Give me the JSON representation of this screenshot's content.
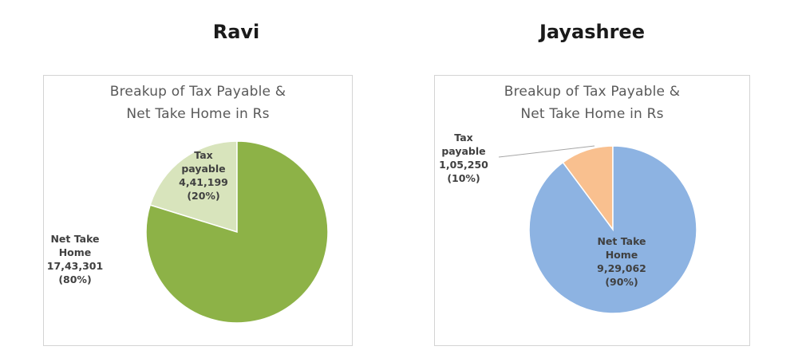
{
  "chart_data": [
    {
      "type": "pie",
      "heading": "Ravi",
      "title_lines": [
        "Breakup of Tax Payable &",
        "Net Take Home  in Rs"
      ],
      "slices": [
        {
          "name_lines": [
            "Tax",
            "payable"
          ],
          "value": 441199,
          "value_label": "4,41,199",
          "percent_label": "(20%)",
          "color": "#d8e4bc"
        },
        {
          "name_lines": [
            "Net Take",
            "Home"
          ],
          "value": 1743301,
          "value_label": "17,43,301",
          "percent_label": "(80%)",
          "color": "#8db247"
        }
      ]
    },
    {
      "type": "pie",
      "heading": "Jayashree",
      "title_lines": [
        "Breakup of Tax Payable &",
        "Net Take Home  in Rs"
      ],
      "slices": [
        {
          "name_lines": [
            "Tax",
            "payable"
          ],
          "value": 105250,
          "value_label": "1,05,250",
          "percent_label": "(10%)",
          "color": "#f9c08f"
        },
        {
          "name_lines": [
            "Net Take",
            "Home"
          ],
          "value": 929062,
          "value_label": "9,29,062",
          "percent_label": "(90%)",
          "color": "#8db3e2"
        }
      ]
    }
  ]
}
